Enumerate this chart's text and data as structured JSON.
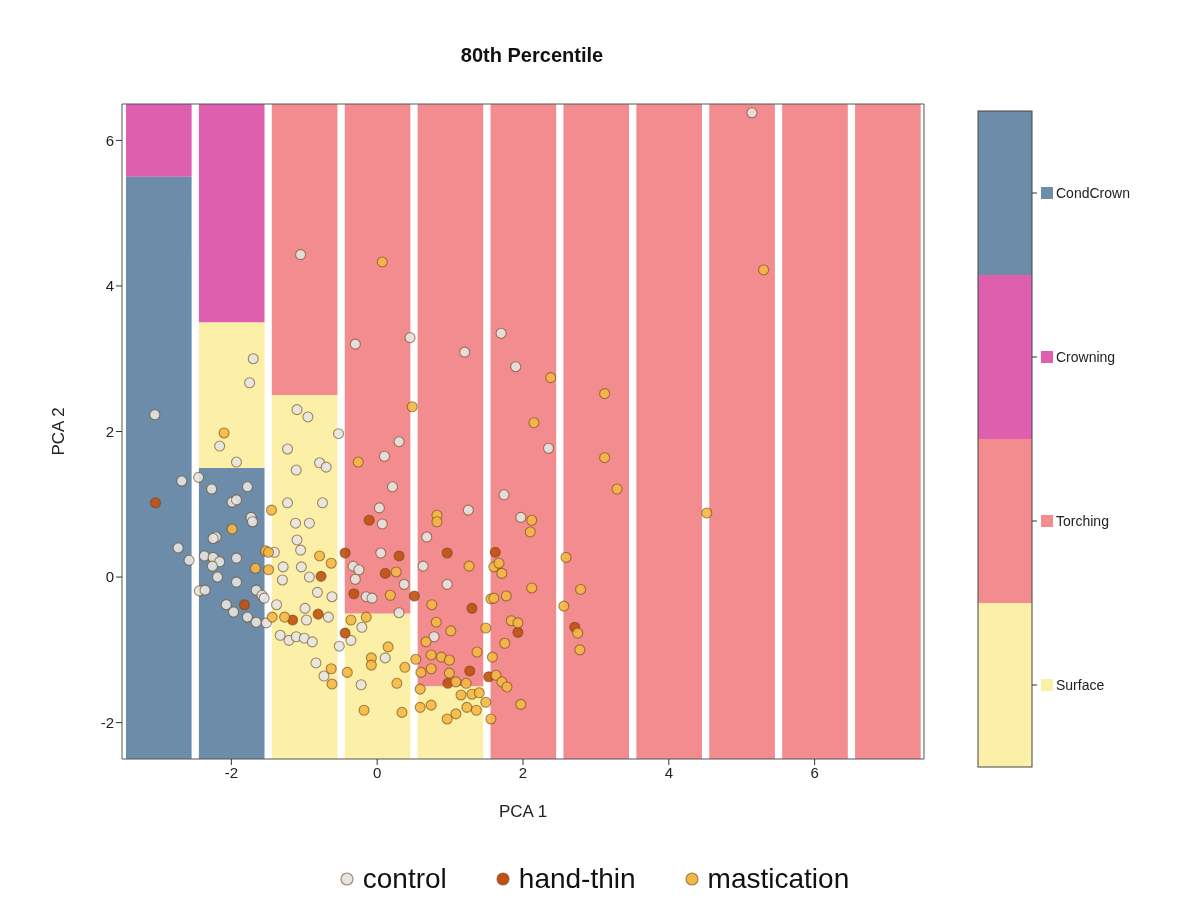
{
  "chart_data": {
    "type": "bar",
    "title": "80th Percentile",
    "xlabel": "PCA 1",
    "ylabel": "PCA 2",
    "xlim": [
      -3.5,
      7.5
    ],
    "xticks": [
      -2,
      0,
      2,
      4,
      6
    ],
    "ylim": [
      -2.5,
      6.5
    ],
    "yticks": [
      -2,
      0,
      2,
      4,
      6
    ],
    "x": [
      -3,
      -2,
      -1,
      0,
      1,
      2,
      3,
      4,
      5,
      6,
      7
    ],
    "legend": "bottom",
    "marker": "circle",
    "series": [
      {
        "name": "Surface",
        "color": "#fcefa8",
        "base": [
          null,
          1.5,
          -2.5,
          -2.5,
          -2.5,
          null,
          null,
          null,
          null,
          null,
          null
        ],
        "values": [
          null,
          2,
          5,
          2,
          1,
          null,
          null,
          null,
          null,
          null,
          null
        ]
      },
      {
        "name": "Torching",
        "color": "#f28c8e",
        "base": [
          null,
          null,
          2.5,
          -0.5,
          -1.5,
          -2.5,
          -2.5,
          -2.5,
          -2.5,
          -2.5,
          -2.5
        ],
        "values": [
          null,
          null,
          4,
          7,
          8,
          9,
          9,
          9,
          9,
          9,
          9
        ]
      },
      {
        "name": "Crowning",
        "color": "#dd5fae",
        "base": [
          5.5,
          3.5,
          null,
          null,
          null,
          null,
          null,
          null,
          null,
          null,
          null
        ],
        "values": [
          1,
          3,
          null,
          null,
          null,
          null,
          null,
          null,
          null,
          null,
          null
        ]
      },
      {
        "name": "CondCrown",
        "color": "#6c8caa",
        "base": [
          -2.5,
          -2.5,
          null,
          null,
          null,
          null,
          null,
          null,
          null,
          null,
          null
        ],
        "values": [
          8,
          4,
          null,
          null,
          null,
          null,
          null,
          null,
          null,
          null,
          null
        ]
      },
      {
        "type": "scatter",
        "name": "control",
        "color": "#e4e4e4",
        "x": [
          5.14,
          -1.05,
          -0.3,
          0.45,
          1.2,
          1.7,
          1.9,
          -1.7,
          -1.75,
          -1.1,
          -0.95,
          -0.53,
          0.3,
          0.1,
          2.35,
          -3.05,
          -2.16,
          -1.93,
          -1.23,
          -1.11,
          -0.79,
          -0.7,
          -2.68,
          -2.45,
          -2.27,
          -1.78,
          -1.99,
          -1.93,
          -1.23,
          -0.75,
          -1.73,
          -1.71,
          -2.21,
          -2.25,
          -1.12,
          -0.93,
          -1.1,
          -2.73,
          -2.58,
          -2.37,
          -2.25,
          -2.16,
          -2.26,
          -1.93,
          -1.41,
          -1.05,
          -0.33,
          -0.25,
          -1.29,
          -1.04,
          -0.93,
          -2.19,
          -1.93,
          -1.3,
          -0.3,
          -2.44,
          -2.36,
          -1.66,
          -1.58,
          -1.55,
          -0.82,
          -0.62,
          -0.15,
          -0.07,
          -2.07,
          -1.97,
          -1.78,
          -1.66,
          -1.52,
          -1.38,
          -0.99,
          -0.97,
          -0.67,
          -0.21,
          -1.33,
          -1.21,
          -1.11,
          -1.0,
          -0.89,
          -0.52,
          -0.36,
          -0.84,
          -0.73,
          -0.22,
          0.21,
          1.74,
          0.03,
          1.25,
          1.97,
          0.07,
          0.68,
          0.05,
          0.63,
          0.37,
          0.96,
          0.3,
          0.78,
          0.11
        ],
        "values": [
          6.38,
          4.43,
          3.2,
          3.29,
          3.09,
          3.35,
          2.89,
          3.0,
          2.67,
          2.3,
          2.2,
          1.97,
          1.86,
          1.66,
          1.77,
          2.23,
          1.8,
          1.58,
          1.76,
          1.47,
          1.57,
          1.51,
          1.32,
          1.37,
          1.21,
          1.24,
          1.03,
          1.06,
          1.02,
          1.02,
          0.82,
          0.76,
          0.55,
          0.53,
          0.74,
          0.74,
          0.51,
          0.4,
          0.23,
          0.29,
          0.27,
          0.21,
          0.15,
          0.26,
          0.34,
          0.37,
          0.15,
          0.1,
          0.14,
          0.14,
          0.0,
          0.0,
          -0.07,
          -0.04,
          -0.03,
          -0.19,
          -0.18,
          -0.18,
          -0.25,
          -0.29,
          -0.21,
          -0.27,
          -0.27,
          -0.29,
          -0.38,
          -0.48,
          -0.55,
          -0.62,
          -0.63,
          -0.38,
          -0.43,
          -0.59,
          -0.55,
          -0.69,
          -0.8,
          -0.87,
          -0.82,
          -0.84,
          -0.89,
          -0.95,
          -0.87,
          -1.18,
          -1.36,
          -1.48,
          1.24,
          1.13,
          0.95,
          0.92,
          0.82,
          0.73,
          0.55,
          0.33,
          0.15,
          -0.1,
          -0.1,
          -0.49,
          -0.82,
          -1.11
        ]
      },
      {
        "type": "scatter",
        "name": "hand-thin",
        "color": "#c2500f",
        "x": [
          -3.04,
          -0.44,
          -0.77,
          -0.32,
          -1.82,
          -1.16,
          -0.81,
          -0.44,
          -0.11,
          0.3,
          0.96,
          1.62,
          0.11,
          0.51,
          1.3,
          1.93,
          2.71,
          1.27,
          1.53,
          0.97
        ],
        "values": [
          1.02,
          0.33,
          0.01,
          -0.23,
          -0.38,
          -0.59,
          -0.51,
          -0.77,
          0.78,
          0.29,
          0.33,
          0.34,
          0.05,
          -0.26,
          -0.43,
          -0.76,
          -0.69,
          -1.29,
          -1.37,
          -1.46
        ]
      },
      {
        "type": "scatter",
        "name": "mastication",
        "color": "#f4b844",
        "x": [
          -2.1,
          -0.26,
          -1.45,
          -1.99,
          -1.53,
          -1.49,
          -0.79,
          -0.63,
          -1.67,
          -1.49,
          -1.44,
          -1.27,
          -0.36,
          -0.15,
          -0.08,
          -0.08,
          -0.63,
          -0.41,
          -0.62,
          -0.18,
          2.15,
          3.12,
          3.29,
          2.12,
          2.1,
          0.82,
          0.82,
          1.26,
          1.6,
          1.71,
          1.67,
          2.59,
          0.26,
          2.12,
          2.79,
          0.18,
          0.75,
          1.56,
          1.6,
          1.77,
          2.56,
          0.81,
          1.01,
          1.49,
          1.84,
          1.93,
          2.75,
          2.78,
          0.67,
          0.15,
          1.37,
          1.75,
          1.58,
          0.53,
          0.74,
          0.88,
          0.99,
          0.38,
          0.6,
          0.74,
          0.99,
          0.27,
          1.08,
          1.22,
          1.63,
          1.71,
          1.78,
          0.59,
          1.15,
          1.3,
          1.4,
          1.49,
          1.97,
          0.34,
          0.59,
          0.74,
          1.08,
          0.96,
          1.23,
          1.36,
          1.56,
          0.07,
          0.48,
          5.3,
          2.38,
          3.12,
          4.52
        ],
        "values": [
          1.98,
          1.58,
          0.92,
          0.66,
          0.36,
          0.34,
          0.29,
          0.19,
          0.12,
          0.1,
          -0.55,
          -0.55,
          -0.59,
          -0.55,
          -1.11,
          -1.21,
          -1.26,
          -1.31,
          -1.47,
          -1.83,
          2.12,
          1.64,
          1.21,
          0.78,
          0.62,
          0.85,
          0.76,
          0.15,
          0.14,
          0.05,
          0.19,
          0.27,
          0.07,
          -0.15,
          -0.17,
          -0.25,
          -0.38,
          -0.3,
          -0.29,
          -0.26,
          -0.4,
          -0.62,
          -0.74,
          -0.7,
          -0.6,
          -0.63,
          -0.77,
          -1.0,
          -0.89,
          -0.96,
          -1.03,
          -0.91,
          -1.1,
          -1.13,
          -1.07,
          -1.1,
          -1.14,
          -1.24,
          -1.31,
          -1.26,
          -1.32,
          -1.46,
          -1.44,
          -1.46,
          -1.35,
          -1.44,
          -1.51,
          -1.54,
          -1.62,
          -1.61,
          -1.59,
          -1.72,
          -1.75,
          -1.86,
          -1.79,
          -1.76,
          -1.88,
          -1.95,
          -1.79,
          -1.83,
          -1.95,
          4.33,
          2.34,
          4.22,
          2.74,
          2.52,
          0.88
        ]
      }
    ]
  }
}
